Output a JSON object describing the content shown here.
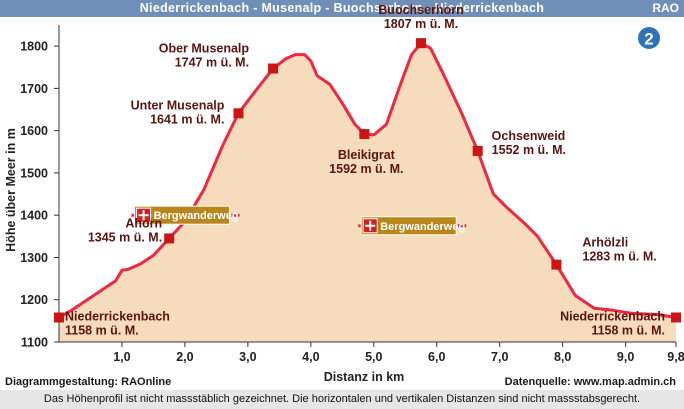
{
  "header": {
    "title": "Niederrickenbach - Musenalp - Buochserhorn - Niederrickenbach",
    "rao": "RAO"
  },
  "badge": "2",
  "trail_sign": "Bergwanderweg",
  "footer": {
    "credit": "Diagrammgestaltung: RAOnline",
    "source": "Datenquelle: www.map.admin.ch",
    "note": "Das Höhenprofil ist nicht massstäblich gezeichnet. Die horizontalen und vertikalen Distanzen sind nicht massstabsgerecht."
  },
  "colors": {
    "header_bg": "#6f8fb8",
    "fill": "#f6dcbd",
    "line": "#ee2742",
    "marker": "#cc1414",
    "label": "#5a1512",
    "trail_sign_bg": "#b8861b",
    "badge": "#2f72b5"
  },
  "chart_data": {
    "type": "area",
    "xlabel": "Distanz in km",
    "ylabel": "Höhe über Meer in m",
    "xlim": [
      0,
      9.8
    ],
    "ylim": [
      1100,
      1850
    ],
    "x_ticks": [
      1.0,
      2.0,
      3.0,
      4.0,
      5.0,
      6.0,
      7.0,
      8.0,
      9.0,
      9.8
    ],
    "x_tick_labels": [
      "1,0",
      "2,0",
      "3,0",
      "4,0",
      "5,0",
      "6,0",
      "7,0",
      "8,0",
      "9,0",
      "9,8"
    ],
    "y_ticks": [
      1100,
      1200,
      1300,
      1400,
      1500,
      1600,
      1700,
      1800
    ],
    "grid": false,
    "profile": {
      "x": [
        0,
        0.2,
        0.5,
        0.9,
        1.0,
        1.1,
        1.3,
        1.5,
        1.75,
        2.0,
        2.3,
        2.6,
        2.85,
        3.1,
        3.4,
        3.6,
        3.75,
        3.9,
        4.0,
        4.1,
        4.3,
        4.5,
        4.7,
        4.85,
        5.0,
        5.2,
        5.45,
        5.6,
        5.75,
        5.9,
        6.1,
        6.4,
        6.65,
        6.9,
        7.1,
        7.4,
        7.6,
        7.9,
        8.2,
        8.5,
        8.8,
        9.1,
        9.5,
        9.8
      ],
      "y": [
        1158,
        1175,
        1205,
        1245,
        1270,
        1272,
        1285,
        1305,
        1345,
        1385,
        1460,
        1565,
        1641,
        1690,
        1747,
        1770,
        1780,
        1780,
        1765,
        1730,
        1710,
        1665,
        1615,
        1592,
        1590,
        1615,
        1720,
        1780,
        1807,
        1795,
        1735,
        1640,
        1552,
        1450,
        1420,
        1380,
        1350,
        1283,
        1210,
        1180,
        1175,
        1168,
        1165,
        1158
      ]
    },
    "points": [
      {
        "name": "Niederrickenbach",
        "x": 0,
        "y": 1158,
        "label": "1158 m ü. M."
      },
      {
        "name": "Ahorn",
        "x": 1.75,
        "y": 1345,
        "label": "1345 m ü. M."
      },
      {
        "name": "Unter Musenalp",
        "x": 2.85,
        "y": 1641,
        "label": "1641 m ü. M."
      },
      {
        "name": "Ober Musenalp",
        "x": 3.4,
        "y": 1747,
        "label": "1747 m ü. M."
      },
      {
        "name": "Bleikigrat",
        "x": 4.85,
        "y": 1592,
        "label": "1592 m ü. M."
      },
      {
        "name": "Buochserhorn",
        "x": 5.75,
        "y": 1807,
        "label": "1807 m ü. M."
      },
      {
        "name": "Ochsenweid",
        "x": 6.65,
        "y": 1552,
        "label": "1552 m ü. M."
      },
      {
        "name": "Arhölzli",
        "x": 7.9,
        "y": 1283,
        "label": "1283 m ü. M."
      },
      {
        "name": "Niederrickenbach",
        "x": 9.8,
        "y": 1158,
        "label": "1158 m ü. M."
      }
    ],
    "trail_markers": [
      {
        "x": 2.9,
        "y": 1400
      },
      {
        "x": 6.5,
        "y": 1375
      }
    ]
  }
}
